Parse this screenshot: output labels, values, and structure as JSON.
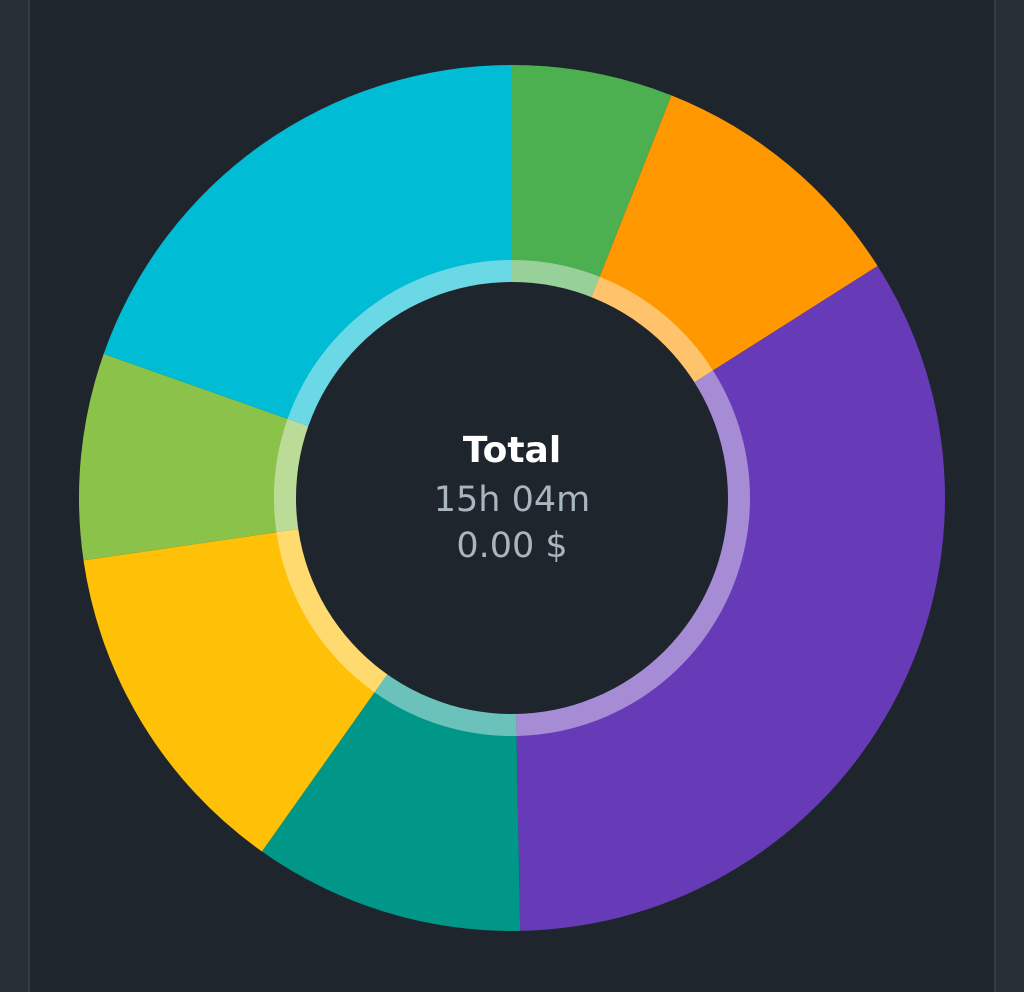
{
  "chart_data": {
    "type": "pie",
    "style": "donut",
    "center": {
      "title": "Total",
      "duration": "15h 04m",
      "amount": "0.00 $"
    },
    "slices": [
      {
        "value": 0.06,
        "color": "#4caf50"
      },
      {
        "value": 0.1,
        "color": "#ff9800"
      },
      {
        "value": 0.337,
        "color": "#673ab7"
      },
      {
        "value": 0.101,
        "color": "#009688"
      },
      {
        "value": 0.129,
        "color": "#ffc107"
      },
      {
        "value": 0.077,
        "color": "#8bc34a"
      },
      {
        "value": 0.196,
        "color": "#00bcd4"
      }
    ],
    "legend": "none",
    "background": "#1f252c"
  }
}
